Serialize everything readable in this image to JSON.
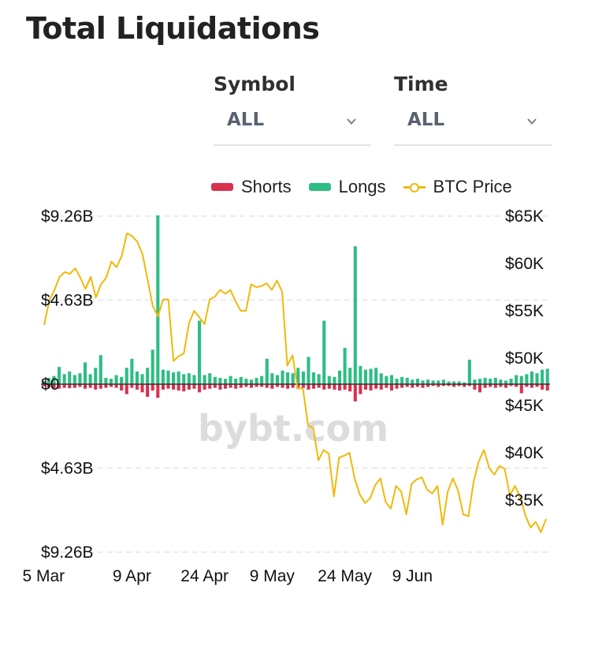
{
  "page": {
    "title": "Total Liquidations"
  },
  "filters": {
    "symbol": {
      "label": "Symbol",
      "value": "ALL"
    },
    "time": {
      "label": "Time",
      "value": "ALL"
    }
  },
  "icons": {
    "dropdown": "chevron-down-icon"
  },
  "watermark": "bybt.com",
  "colors": {
    "shorts": "#d9304e",
    "longs": "#2ebd85",
    "price": "#f0b90b",
    "grid": "#e0e0e0"
  },
  "chart_data": {
    "type": "bar",
    "legend": {
      "position": "top-right",
      "items": [
        "Shorts",
        "Longs",
        "BTC Price"
      ]
    },
    "grid": true,
    "x_ticks": [
      "5 Mar",
      "9 Apr",
      "24 Apr",
      "9 May",
      "24 May",
      "9 Jun"
    ],
    "x_tick_index": [
      0,
      17,
      31,
      44,
      58,
      71
    ],
    "y_left_ticks": [
      "$9.26B",
      "$4.63B",
      "$0",
      "$4.63B",
      "$9.26B"
    ],
    "y_left_values": [
      9.26,
      4.63,
      0,
      -4.63,
      -9.26
    ],
    "ylim_left": [
      -9.26,
      9.26
    ],
    "y_right_ticks": [
      "$65K",
      "$60K",
      "$55K",
      "$50K",
      "$45K",
      "$40K",
      "$35K"
    ],
    "y_right_values": [
      65000,
      60000,
      55000,
      50000,
      45000,
      40000,
      35000
    ],
    "ylim_right": [
      29500,
      65000
    ],
    "series": [
      {
        "name": "Longs",
        "unit": "B",
        "values": [
          0.18,
          0.35,
          0.45,
          0.95,
          0.55,
          0.7,
          0.5,
          0.6,
          1.2,
          0.55,
          0.9,
          1.6,
          0.35,
          0.3,
          0.5,
          0.4,
          0.9,
          1.4,
          0.7,
          0.55,
          0.9,
          1.9,
          9.3,
          0.8,
          0.75,
          0.65,
          0.7,
          0.55,
          0.6,
          0.5,
          3.5,
          0.5,
          0.6,
          0.4,
          0.35,
          0.3,
          0.45,
          0.3,
          0.4,
          0.3,
          0.25,
          0.35,
          0.45,
          1.4,
          0.6,
          0.5,
          0.75,
          0.65,
          0.6,
          0.9,
          0.7,
          1.5,
          0.65,
          0.55,
          3.5,
          0.45,
          0.4,
          0.75,
          2.0,
          0.9,
          7.6,
          1.0,
          0.8,
          0.85,
          0.9,
          0.6,
          0.45,
          0.5,
          0.3,
          0.4,
          0.35,
          0.25,
          0.3,
          0.2,
          0.25,
          0.2,
          0.2,
          0.25,
          0.15,
          0.15,
          0.15,
          0.1,
          1.35,
          0.25,
          0.3,
          0.35,
          0.3,
          0.35,
          0.25,
          0.2,
          0.3,
          0.5,
          0.45,
          0.55,
          0.7,
          0.6,
          0.8,
          0.85
        ]
      },
      {
        "name": "Shorts",
        "unit": "B",
        "values": [
          0.12,
          0.18,
          0.22,
          0.25,
          0.2,
          0.22,
          0.2,
          0.15,
          0.25,
          0.2,
          0.3,
          0.25,
          0.2,
          0.15,
          0.2,
          0.35,
          0.55,
          0.2,
          0.3,
          0.45,
          0.7,
          0.35,
          0.75,
          0.3,
          0.25,
          0.3,
          0.35,
          0.4,
          0.3,
          0.25,
          0.45,
          0.3,
          0.25,
          0.2,
          0.3,
          0.25,
          0.2,
          0.25,
          0.2,
          0.15,
          0.2,
          0.15,
          0.15,
          0.2,
          0.25,
          0.15,
          0.2,
          0.25,
          0.2,
          0.25,
          0.2,
          0.3,
          0.25,
          0.2,
          0.3,
          0.25,
          0.3,
          0.35,
          0.3,
          0.4,
          0.95,
          0.55,
          0.3,
          0.35,
          0.25,
          0.3,
          0.2,
          0.35,
          0.25,
          0.2,
          0.15,
          0.2,
          0.15,
          0.2,
          0.15,
          0.1,
          0.15,
          0.1,
          0.1,
          0.15,
          0.1,
          0.15,
          0.1,
          0.3,
          0.45,
          0.2,
          0.15,
          0.2,
          0.15,
          0.2,
          0.1,
          0.15,
          0.5,
          0.15,
          0.2,
          0.15,
          0.3,
          0.35
        ]
      },
      {
        "name": "BTC Price",
        "unit": "USD",
        "values": [
          53500,
          56100,
          57200,
          58600,
          59100,
          58900,
          59500,
          58500,
          57300,
          58600,
          56400,
          57800,
          58500,
          60200,
          59600,
          60800,
          63200,
          62900,
          62300,
          61000,
          58300,
          55500,
          54400,
          56200,
          56200,
          49700,
          50200,
          50500,
          53700,
          55000,
          54300,
          53600,
          56200,
          56500,
          57200,
          56800,
          57200,
          56000,
          55000,
          55000,
          57800,
          57500,
          57600,
          57900,
          57200,
          58200,
          57000,
          49200,
          50300,
          46800,
          46800,
          42900,
          42600,
          39200,
          40300,
          39900,
          35400,
          39500,
          39700,
          40000,
          37300,
          35600,
          34700,
          35200,
          36600,
          37300,
          34800,
          34100,
          36500,
          35900,
          33500,
          36700,
          37200,
          37400,
          36100,
          35700,
          36500,
          32400,
          35900,
          37300,
          36000,
          33500,
          33300,
          37000,
          39100,
          40300,
          38400,
          37700,
          38600,
          38300,
          35500,
          36500,
          35300,
          33400,
          32100,
          32700,
          31600,
          33000
        ]
      }
    ]
  }
}
